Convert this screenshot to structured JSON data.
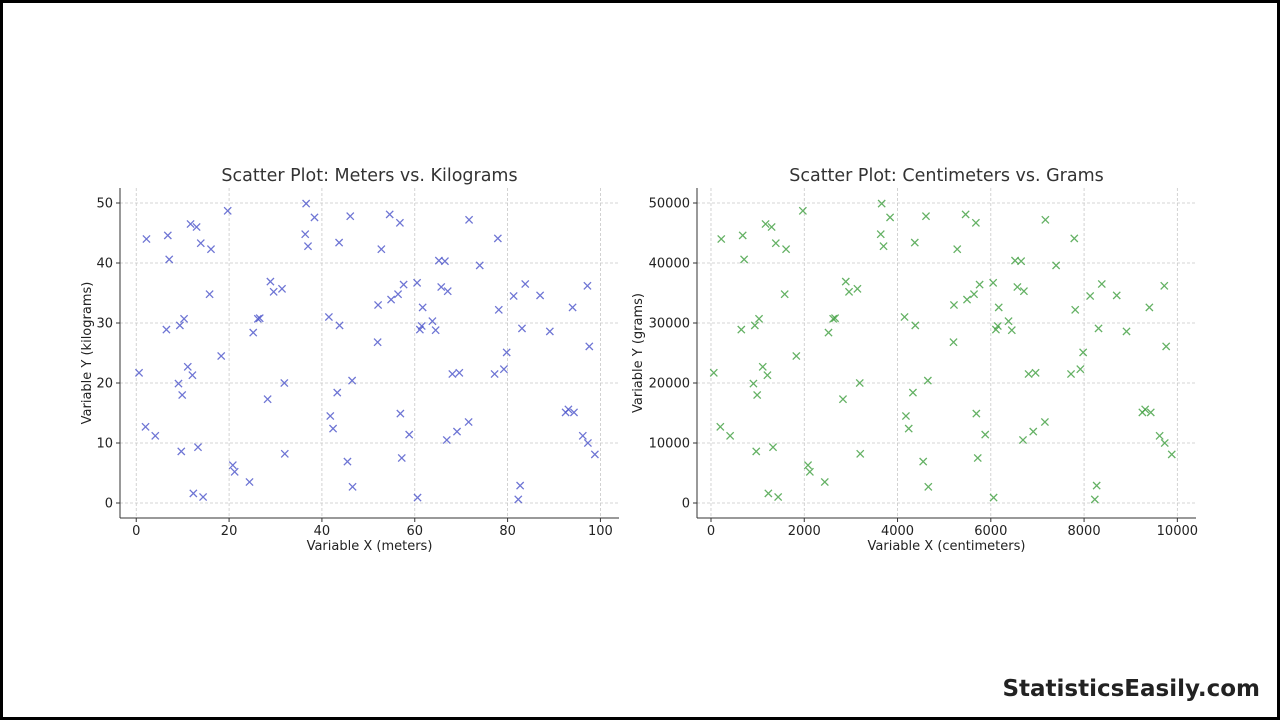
{
  "chart_data": [
    {
      "type": "scatter",
      "title": "Scatter Plot: Meters vs. Kilograms",
      "xlabel": "Variable X (meters)",
      "ylabel": "Variable Y (kilograms)",
      "xlim": [
        -3.5,
        104
      ],
      "ylim": [
        -2.5,
        52.5
      ],
      "xticks": [
        0,
        20,
        40,
        60,
        80,
        100
      ],
      "yticks": [
        0,
        10,
        20,
        30,
        40,
        50
      ],
      "grid": true,
      "marker": "x",
      "color": "#4a52c9",
      "series": [
        {
          "x": [
            0.6,
            2.0,
            2.2,
            4.1,
            6.5,
            6.8,
            7.1,
            9.1,
            9.4,
            9.7,
            9.9,
            10.3,
            11.1,
            11.7,
            12.1,
            12.3,
            13.0,
            13.3,
            13.9,
            14.4,
            15.8,
            16.1,
            18.3,
            19.7,
            20.8,
            21.2,
            24.4,
            25.2,
            26.2,
            26.6,
            28.3,
            28.9,
            29.6,
            31.4,
            31.9,
            32.0,
            36.4,
            36.6,
            37.0,
            38.4,
            41.5,
            41.8,
            42.4,
            43.3,
            43.7,
            43.8,
            45.5,
            46.1,
            46.5,
            46.6,
            52.0,
            52.1,
            52.8,
            54.6,
            54.9,
            56.4,
            56.8,
            56.9,
            57.2,
            57.6,
            58.8,
            60.5,
            60.6,
            61.1,
            61.5,
            61.7,
            63.8,
            64.5,
            65.2,
            65.7,
            66.5,
            66.9,
            67.1,
            68.1,
            69.1,
            69.6,
            71.6,
            71.7,
            74.0,
            77.2,
            77.9,
            78.1,
            79.2,
            79.8,
            81.3,
            82.3,
            82.7,
            83.1,
            83.8,
            87.0,
            89.1,
            92.5,
            93.1,
            94.0,
            94.3,
            96.2,
            97.2,
            97.3,
            97.6,
            98.8
          ],
          "y": [
            21.7,
            12.7,
            44.0,
            11.2,
            28.9,
            44.6,
            40.6,
            19.9,
            29.6,
            8.6,
            18.0,
            30.7,
            22.7,
            46.5,
            21.3,
            1.6,
            46.0,
            9.3,
            43.3,
            1.0,
            34.8,
            42.3,
            24.5,
            48.7,
            6.3,
            5.2,
            3.5,
            28.4,
            30.7,
            30.8,
            17.3,
            36.9,
            35.2,
            35.7,
            20.0,
            8.2,
            44.8,
            49.9,
            42.8,
            47.6,
            31.0,
            14.5,
            12.4,
            18.4,
            43.4,
            29.6,
            6.9,
            47.8,
            20.4,
            2.7,
            26.8,
            33.0,
            42.3,
            48.1,
            33.9,
            34.8,
            46.7,
            14.9,
            7.5,
            36.4,
            11.4,
            36.7,
            0.9,
            28.9,
            29.5,
            32.6,
            30.3,
            28.8,
            40.4,
            36.0,
            40.3,
            10.5,
            35.3,
            21.5,
            11.9,
            21.7,
            13.5,
            47.2,
            39.6,
            21.5,
            44.1,
            32.2,
            22.3,
            25.1,
            34.5,
            0.6,
            2.9,
            29.1,
            36.5,
            34.6,
            28.6,
            15.1,
            15.6,
            32.6,
            15.1,
            11.2,
            36.2,
            10.0,
            26.1,
            8.1
          ]
        }
      ]
    },
    {
      "type": "scatter",
      "title": "Scatter Plot: Centimeters vs. Grams",
      "xlabel": "Variable X (centimeters)",
      "ylabel": "Variable Y (grams)",
      "xlim": [
        -300,
        10400
      ],
      "ylim": [
        -2500,
        52500
      ],
      "xticks": [
        0,
        2000,
        4000,
        6000,
        8000,
        10000
      ],
      "yticks": [
        0,
        10000,
        20000,
        30000,
        40000,
        50000
      ],
      "grid": true,
      "marker": "x",
      "color": "#3d9e3d",
      "series": [
        {
          "x": [
            60,
            200,
            220,
            410,
            650,
            680,
            710,
            910,
            940,
            970,
            990,
            1030,
            1110,
            1170,
            1210,
            1230,
            1300,
            1330,
            1390,
            1440,
            1580,
            1610,
            1830,
            1970,
            2080,
            2120,
            2440,
            2520,
            2620,
            2660,
            2830,
            2890,
            2960,
            3140,
            3190,
            3200,
            3640,
            3660,
            3700,
            3840,
            4150,
            4180,
            4240,
            4330,
            4370,
            4380,
            4550,
            4610,
            4650,
            4660,
            5200,
            5210,
            5280,
            5460,
            5490,
            5640,
            5680,
            5690,
            5720,
            5760,
            5880,
            6050,
            6060,
            6110,
            6150,
            6170,
            6380,
            6450,
            6520,
            6570,
            6650,
            6690,
            6710,
            6810,
            6910,
            6960,
            7160,
            7170,
            7400,
            7720,
            7790,
            7810,
            7920,
            7980,
            8130,
            8230,
            8270,
            8310,
            8380,
            8700,
            8910,
            9250,
            9310,
            9400,
            9430,
            9620,
            9720,
            9730,
            9760,
            9880
          ],
          "y": [
            21700,
            12700,
            44000,
            11200,
            28900,
            44600,
            40600,
            19900,
            29600,
            8600,
            18000,
            30700,
            22700,
            46500,
            21300,
            1600,
            46000,
            9300,
            43300,
            1000,
            34800,
            42300,
            24500,
            48700,
            6300,
            5200,
            3500,
            28400,
            30700,
            30800,
            17300,
            36900,
            35200,
            35700,
            20000,
            8200,
            44800,
            49900,
            42800,
            47600,
            31000,
            14500,
            12400,
            18400,
            43400,
            29600,
            6900,
            47800,
            20400,
            2700,
            26800,
            33000,
            42300,
            48100,
            33900,
            34800,
            46700,
            14900,
            7500,
            36400,
            11400,
            36700,
            900,
            28900,
            29500,
            32600,
            30300,
            28800,
            40400,
            36000,
            40300,
            10500,
            35300,
            21500,
            11900,
            21700,
            13500,
            47200,
            39600,
            21500,
            44100,
            32200,
            22300,
            25100,
            34500,
            600,
            2900,
            29100,
            36500,
            34600,
            28600,
            15100,
            15600,
            32600,
            15100,
            11200,
            36200,
            10000,
            26100,
            8100
          ]
        }
      ]
    }
  ],
  "watermark": "StatisticsEasily.com"
}
